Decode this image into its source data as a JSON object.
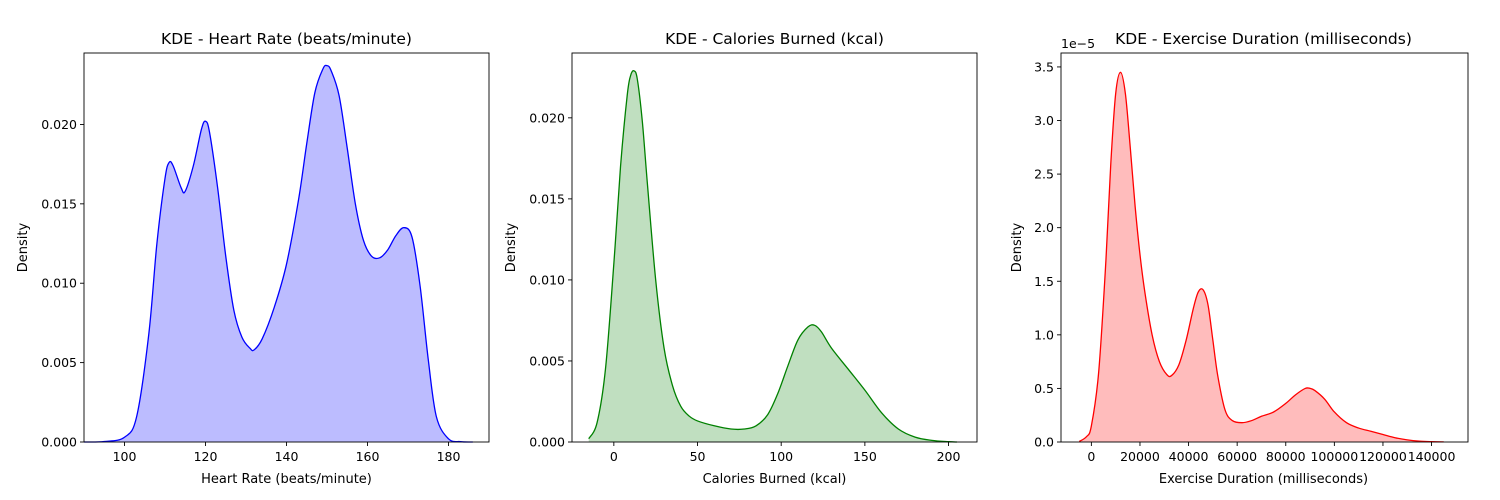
{
  "chart_data": [
    {
      "type": "area",
      "title": "KDE - Heart Rate (beats/minute)",
      "xlabel": "Heart Rate (beats/minute)",
      "ylabel": "Density",
      "xlim": [
        90,
        190
      ],
      "ylim": [
        0,
        0.0245
      ],
      "xticks": [
        100,
        120,
        140,
        160,
        180
      ],
      "xtick_labels": [
        "100",
        "120",
        "140",
        "160",
        "180"
      ],
      "yticks": [
        0,
        0.005,
        0.01,
        0.015,
        0.02
      ],
      "ytick_labels": [
        "0.000",
        "0.005",
        "0.010",
        "0.015",
        "0.020"
      ],
      "offset_text": "",
      "color": "#0000ff",
      "fill_color": "#bcbcff",
      "grid": false,
      "series": [
        {
          "x": [
            90,
            95,
            100,
            103,
            106,
            108,
            110,
            111,
            112,
            114,
            115,
            117,
            119,
            120,
            121,
            123,
            125,
            127,
            129,
            131,
            132,
            134,
            137,
            140,
            143,
            145,
            147,
            149,
            150,
            151,
            153,
            155,
            157,
            159,
            161,
            163,
            165,
            167,
            169,
            171,
            173,
            175,
            177,
            180,
            183,
            186
          ],
          "y": [
            0,
            3e-05,
            0.0003,
            0.0016,
            0.0068,
            0.0125,
            0.0166,
            0.0176,
            0.0174,
            0.016,
            0.0158,
            0.0174,
            0.0197,
            0.0202,
            0.0195,
            0.016,
            0.0117,
            0.0083,
            0.0066,
            0.0059,
            0.0058,
            0.0065,
            0.0085,
            0.0112,
            0.0153,
            0.0188,
            0.022,
            0.0235,
            0.0237,
            0.0234,
            0.0218,
            0.0185,
            0.015,
            0.0127,
            0.0117,
            0.0116,
            0.0121,
            0.013,
            0.0135,
            0.0129,
            0.0098,
            0.0052,
            0.0016,
            0.0002,
            2e-05,
            0
          ]
        }
      ]
    },
    {
      "type": "area",
      "title": "KDE - Calories Burned (kcal)",
      "xlabel": "Calories Burned (kcal)",
      "ylabel": "Density",
      "xlim": [
        -25,
        217
      ],
      "ylim": [
        0,
        0.024
      ],
      "xticks": [
        0,
        50,
        100,
        150,
        200
      ],
      "xtick_labels": [
        "0",
        "50",
        "100",
        "150",
        "200"
      ],
      "yticks": [
        0,
        0.005,
        0.01,
        0.015,
        0.02
      ],
      "ytick_labels": [
        "0.000",
        "0.005",
        "0.010",
        "0.015",
        "0.020"
      ],
      "offset_text": "",
      "color": "#008000",
      "fill_color": "#c0dfc0",
      "grid": false,
      "series": [
        {
          "x": [
            -15,
            -10,
            -5,
            0,
            4,
            8,
            10,
            12,
            14,
            17,
            20,
            25,
            30,
            35,
            40,
            45,
            50,
            60,
            70,
            78,
            85,
            92,
            98,
            104,
            110,
            116,
            120,
            124,
            130,
            140,
            150,
            160,
            170,
            180,
            190,
            200,
            205
          ],
          "y": [
            0.0002,
            0.0012,
            0.0045,
            0.011,
            0.017,
            0.0214,
            0.0226,
            0.0229,
            0.0224,
            0.0198,
            0.016,
            0.01,
            0.0058,
            0.0035,
            0.0022,
            0.0016,
            0.0013,
            0.001,
            0.0008,
            0.0008,
            0.001,
            0.0017,
            0.003,
            0.0047,
            0.0063,
            0.0071,
            0.0072,
            0.0068,
            0.0058,
            0.0045,
            0.0032,
            0.0018,
            0.0008,
            0.0003,
            0.0001,
            2e-05,
            0
          ]
        }
      ]
    },
    {
      "type": "area",
      "title": "KDE - Exercise Duration (milliseconds)",
      "xlabel": "Exercise Duration (milliseconds)",
      "ylabel": "Density",
      "xlim": [
        -12500,
        155000
      ],
      "ylim": [
        0,
        3.63
      ],
      "xticks": [
        0,
        20000,
        40000,
        60000,
        80000,
        100000,
        120000,
        140000
      ],
      "xtick_labels": [
        "0",
        "20000",
        "40000",
        "60000",
        "80000",
        "100000",
        "120000",
        "140000"
      ],
      "yticks": [
        0,
        0.5,
        1.0,
        1.5,
        2.0,
        2.5,
        3.0,
        3.5
      ],
      "ytick_labels": [
        "0.0",
        "0.5",
        "1.0",
        "1.5",
        "2.0",
        "2.5",
        "3.0",
        "3.5"
      ],
      "offset_text": "1e−5",
      "color": "#ff0000",
      "fill_color": "#ffbcbc",
      "grid": false,
      "series": [
        {
          "x": [
            -5000,
            -2000,
            0,
            3000,
            6000,
            8000,
            10000,
            12000,
            14000,
            16000,
            18000,
            20000,
            22000,
            25000,
            28000,
            31000,
            33000,
            36000,
            39000,
            42000,
            44000,
            46000,
            48000,
            50000,
            52000,
            55000,
            58000,
            62000,
            66000,
            70000,
            75000,
            80000,
            84000,
            88000,
            90000,
            92000,
            96000,
            100000,
            105000,
            110000,
            115000,
            120000,
            125000,
            130000,
            135000,
            140000,
            145000
          ],
          "y": [
            0.005,
            0.05,
            0.15,
            0.65,
            1.7,
            2.6,
            3.25,
            3.45,
            3.25,
            2.75,
            2.2,
            1.75,
            1.4,
            1.0,
            0.75,
            0.63,
            0.62,
            0.72,
            0.95,
            1.25,
            1.4,
            1.42,
            1.28,
            0.95,
            0.62,
            0.3,
            0.2,
            0.18,
            0.2,
            0.24,
            0.28,
            0.36,
            0.44,
            0.5,
            0.5,
            0.48,
            0.4,
            0.28,
            0.18,
            0.13,
            0.1,
            0.07,
            0.04,
            0.02,
            0.008,
            0.003,
            0.001
          ]
        }
      ]
    }
  ]
}
